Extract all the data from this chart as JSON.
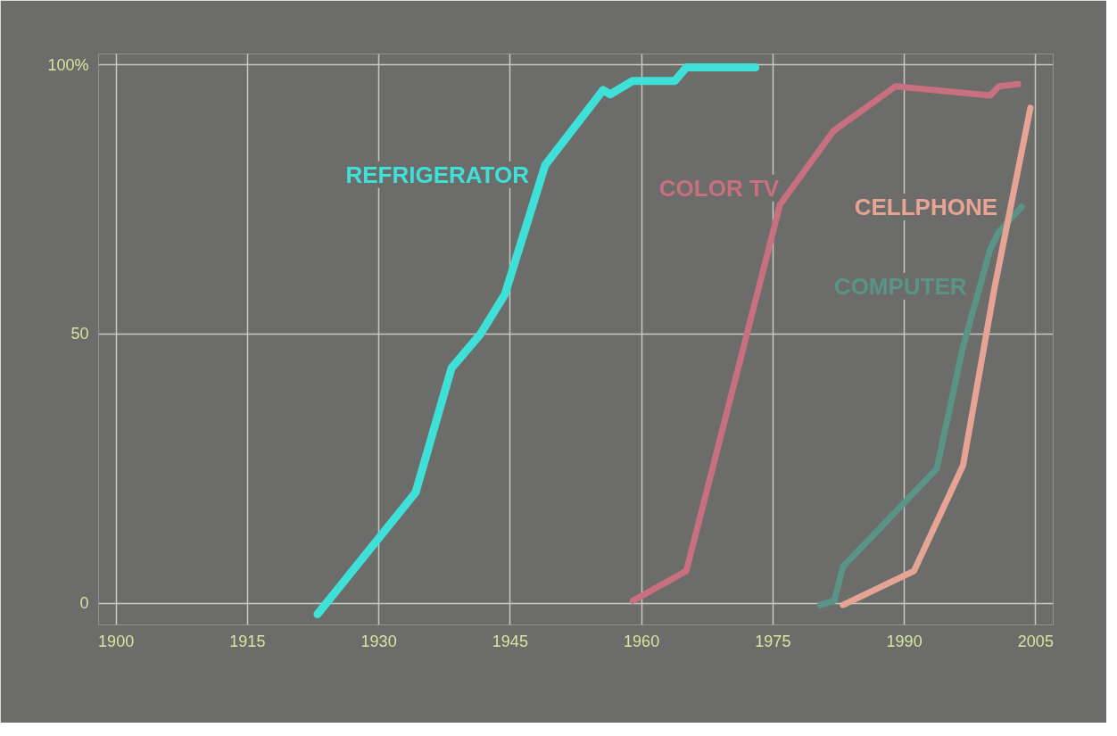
{
  "chart_data": {
    "type": "line",
    "xlim": [
      1898,
      2007
    ],
    "ylim": [
      -4,
      102
    ],
    "xticks": [
      1900,
      1915,
      1930,
      1945,
      1960,
      1975,
      1990,
      2005
    ],
    "yticks": [
      0,
      50,
      {
        "value": 100,
        "label": "100%"
      }
    ],
    "grid": true,
    "legend": false,
    "marker": "none",
    "line_style": "solid",
    "series": [
      {
        "name": "REFRIGERATOR",
        "color": "#3fe0d8",
        "x": [
          1923,
          1934.2,
          1938.3,
          1941.6,
          1944.4,
          1949,
          1955.6,
          1956.4,
          1959,
          1963.8,
          1965.1,
          1973
        ],
        "values": [
          -2,
          20.6,
          43.7,
          50,
          57.4,
          81.4,
          95.3,
          94.5,
          97,
          97,
          99.5,
          99.5
        ]
      },
      {
        "name": "COLOR TV",
        "color": "#c8707f",
        "x": [
          1959,
          1965.1,
          1975.8,
          1981.9,
          1989,
          1999.8,
          2000.8,
          2003
        ],
        "values": [
          0.5,
          6,
          74,
          87.7,
          96,
          94.3,
          96,
          96.4
        ]
      },
      {
        "name": "COMPUTER",
        "color": "#5a9486",
        "x": [
          1980.4,
          1982,
          1983,
          1993.7,
          1996.7,
          1999.8,
          2000.8,
          2003.4
        ],
        "values": [
          -0.3,
          0.5,
          6.8,
          25,
          47.6,
          65.7,
          69,
          73.6
        ]
      },
      {
        "name": "CELLPHONE",
        "color": "#e6a494",
        "x": [
          1983,
          1991.1,
          1996.7,
          2000.3,
          2004.4
        ],
        "values": [
          -0.3,
          6,
          25.6,
          58.6,
          92
        ]
      }
    ]
  }
}
